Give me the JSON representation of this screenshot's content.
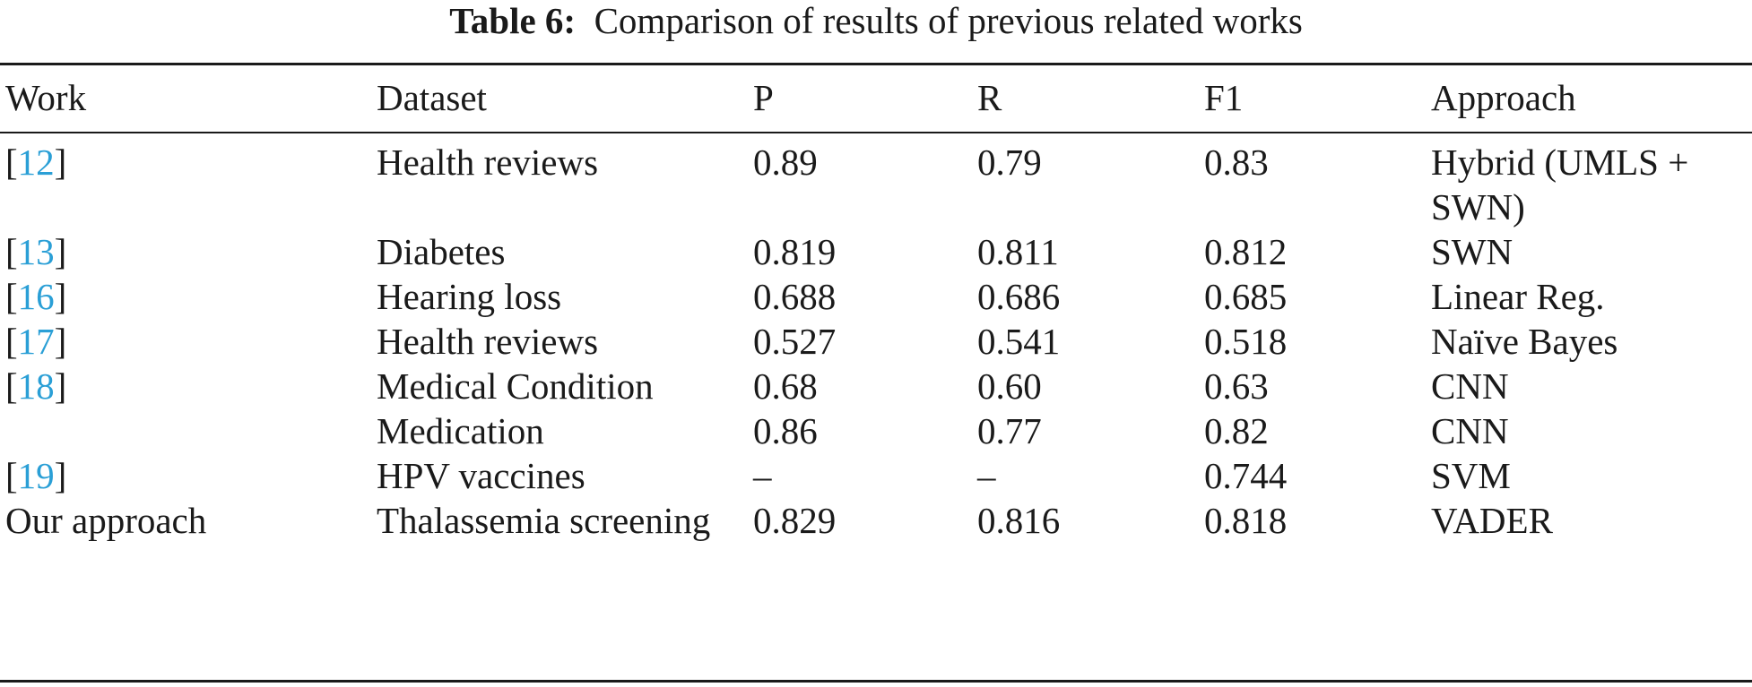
{
  "caption": {
    "label": "Table 6:",
    "text": "Comparison of results of previous related works"
  },
  "columns": [
    "Work",
    "Dataset",
    "P",
    "R",
    "F1",
    "Approach"
  ],
  "rows": [
    {
      "work_ref": "12",
      "work": "",
      "dataset": "Health reviews",
      "p": "0.89",
      "r": "0.79",
      "f1": "0.83",
      "approach": "Hybrid (UMLS + SWN)"
    },
    {
      "work_ref": "13",
      "work": "",
      "dataset": "Diabetes",
      "p": "0.819",
      "r": "0.811",
      "f1": "0.812",
      "approach": "SWN"
    },
    {
      "work_ref": "16",
      "work": "",
      "dataset": "Hearing loss",
      "p": "0.688",
      "r": "0.686",
      "f1": "0.685",
      "approach": "Linear Reg."
    },
    {
      "work_ref": "17",
      "work": "",
      "dataset": "Health reviews",
      "p": "0.527",
      "r": "0.541",
      "f1": "0.518",
      "approach": "Naïve Bayes"
    },
    {
      "work_ref": "18",
      "work": "",
      "dataset": "Medical Condition",
      "p": "0.68",
      "r": "0.60",
      "f1": "0.63",
      "approach": "CNN"
    },
    {
      "work_ref": "",
      "work": "",
      "dataset": "Medication",
      "p": "0.86",
      "r": "0.77",
      "f1": "0.82",
      "approach": "CNN"
    },
    {
      "work_ref": "19",
      "work": "",
      "dataset": "HPV vaccines",
      "p": "–",
      "r": "–",
      "f1": "0.744",
      "approach": "SVM"
    },
    {
      "work_ref": "",
      "work": "Our approach",
      "dataset": "Thalassemia screening",
      "p": "0.829",
      "r": "0.816",
      "f1": "0.818",
      "approach": "VADER"
    }
  ]
}
